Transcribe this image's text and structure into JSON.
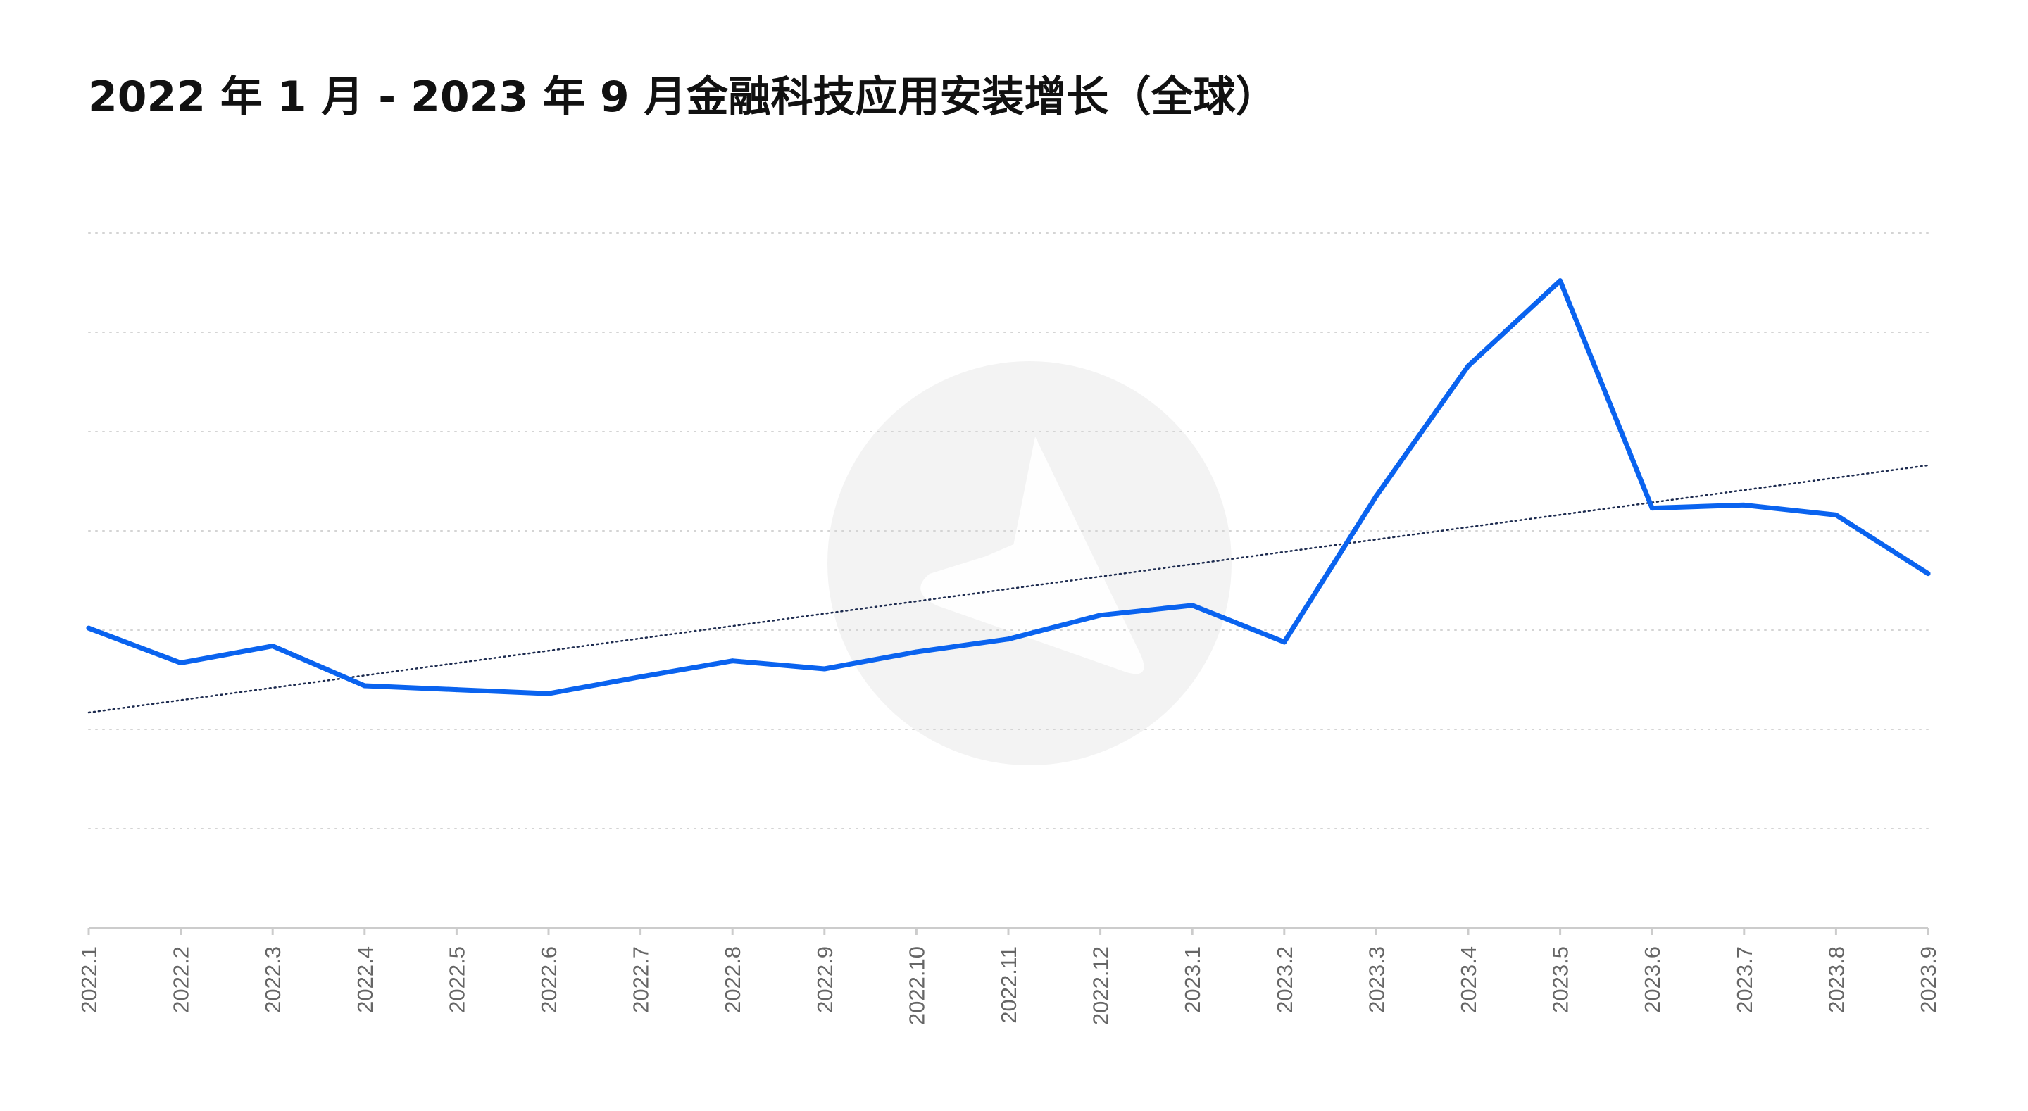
{
  "colors": {
    "line": "#0a63ef",
    "grid": "#d4d4d4",
    "axis": "#cccccc",
    "trend": "#1d2b4f",
    "watermark": "#f3f3f3",
    "title": "#111111",
    "tick_text": "#666666"
  },
  "chart_data": {
    "type": "line",
    "title": "2022 年 1 月 - 2023 年 9 月金融科技应用安装增长（全球）",
    "xlabel": "",
    "ylabel": "",
    "categories": [
      "2022.1",
      "2022.2",
      "2022.3",
      "2022.4",
      "2022.5",
      "2022.6",
      "2022.7",
      "2022.8",
      "2022.9",
      "2022.10",
      "2022.11",
      "2022.12",
      "2023.1",
      "2023.2",
      "2023.3",
      "2023.4",
      "2023.5",
      "2023.6",
      "2023.7",
      "2023.8",
      "2023.9"
    ],
    "series": [
      {
        "values": [
          30.2,
          26.7,
          28.4,
          24.4,
          24.0,
          23.6,
          25.3,
          26.9,
          26.1,
          27.8,
          29.1,
          31.5,
          32.5,
          28.8,
          43.5,
          56.6,
          65.2,
          42.3,
          42.6,
          41.6,
          35.7
        ]
      }
    ],
    "trendline": {
      "style": "dotted",
      "start": 21.7,
      "end": 46.6
    },
    "ylim": [
      0,
      70
    ],
    "y_gridlines": [
      10,
      20,
      30,
      40,
      50,
      60,
      70
    ],
    "y_tick_labels_shown": false,
    "grid": true,
    "legend": "none"
  }
}
